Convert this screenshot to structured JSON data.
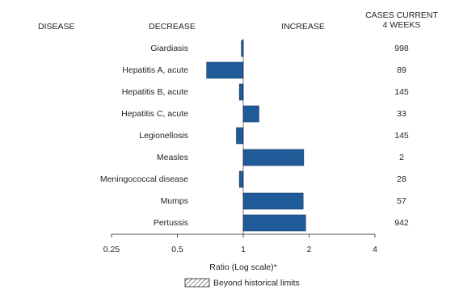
{
  "chart_data": {
    "type": "bar",
    "orientation": "horizontal",
    "headers": {
      "disease": "DISEASE",
      "decrease": "DECREASE",
      "increase": "INCREASE",
      "cases": [
        "CASES CURRENT",
        "4 WEEKS"
      ]
    },
    "categories": [
      "Giardiasis",
      "Hepatitis A, acute",
      "Hepatitis B, acute",
      "Hepatitis C, acute",
      "Legionellosis",
      "Measles",
      "Meningococcal disease",
      "Mumps",
      "Pertussis"
    ],
    "values": [
      0.98,
      0.68,
      0.96,
      1.18,
      0.93,
      1.89,
      0.96,
      1.88,
      1.93
    ],
    "cases_current_4_weeks": [
      998,
      89,
      145,
      33,
      145,
      2,
      28,
      57,
      942
    ],
    "color": "#1f5a99",
    "x_scale": "log",
    "xlim": [
      0.25,
      4
    ],
    "xticks": [
      0.25,
      0.5,
      1,
      2,
      4
    ],
    "xlabel": "Ratio (Log scale)*",
    "legend_label": "Beyond historical limits"
  }
}
